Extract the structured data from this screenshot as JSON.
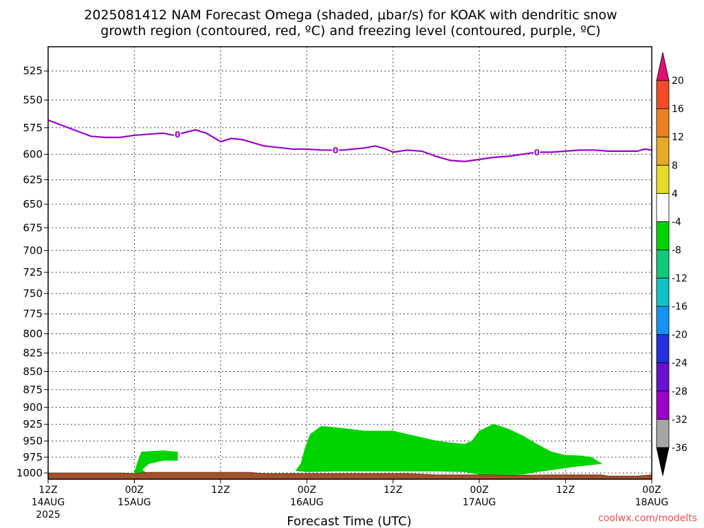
{
  "chart_data": {
    "type": "time-height contour",
    "title_line1": "2025081412 NAM Forecast Omega (shaded, μbar/s) for KOAK with dendritic snow",
    "title_line2": "growth region (contoured, red, ºC) and freezing level (contoured, purple, ºC)",
    "xlabel": "Forecast Time (UTC)",
    "credit": "coolwx.com/modelts",
    "y_axis": {
      "scale": "log-pressure",
      "reversed": true,
      "ylim": [
        1010,
        505
      ],
      "ticks": [
        525,
        550,
        575,
        600,
        625,
        650,
        675,
        700,
        725,
        750,
        775,
        800,
        825,
        850,
        875,
        900,
        925,
        950,
        975,
        1000
      ]
    },
    "x_axis": {
      "xlim": [
        0,
        84
      ],
      "ticks": [
        {
          "h": 0,
          "line1": "12Z",
          "line2": "14AUG",
          "line3": "2025"
        },
        {
          "h": 12,
          "line1": "00Z",
          "line2": "15AUG",
          "line3": ""
        },
        {
          "h": 24,
          "line1": "12Z",
          "line2": "",
          "line3": ""
        },
        {
          "h": 36,
          "line1": "00Z",
          "line2": "16AUG",
          "line3": ""
        },
        {
          "h": 48,
          "line1": "12Z",
          "line2": "",
          "line3": ""
        },
        {
          "h": 60,
          "line1": "00Z",
          "line2": "17AUG",
          "line3": ""
        },
        {
          "h": 72,
          "line1": "12Z",
          "line2": "",
          "line3": ""
        },
        {
          "h": 84,
          "line1": "00Z",
          "line2": "18AUG",
          "line3": ""
        }
      ]
    },
    "grid": true,
    "colorbar": {
      "position": "right",
      "colors": [
        "#000000",
        "#a6a6a6",
        "#9a00c8",
        "#6a10d2",
        "#2230e0",
        "#1493f0",
        "#10c2c8",
        "#12c87a",
        "#00d400",
        "#ffffff",
        "#e6dc28",
        "#e6aa28",
        "#ec8020",
        "#f04a28",
        "#e01070"
      ],
      "labels": [
        "-36",
        "-32",
        "-28",
        "-24",
        "-20",
        "-16",
        "-12",
        "-8",
        "-4",
        "4",
        "8",
        "12",
        "16",
        "20"
      ]
    },
    "freezing_level": {
      "label": "0",
      "label_hours": [
        18,
        40,
        68
      ],
      "color": "#9900cc",
      "points": [
        [
          0,
          568
        ],
        [
          2,
          573
        ],
        [
          4,
          578
        ],
        [
          6,
          583
        ],
        [
          8,
          584
        ],
        [
          10,
          584
        ],
        [
          12,
          582
        ],
        [
          14,
          581
        ],
        [
          16,
          580
        ],
        [
          17.5,
          582
        ],
        [
          20.5,
          577
        ],
        [
          22,
          580
        ],
        [
          24,
          588
        ],
        [
          25.5,
          585
        ],
        [
          27,
          586
        ],
        [
          28,
          588
        ],
        [
          30,
          592
        ],
        [
          34,
          595
        ],
        [
          36,
          595
        ],
        [
          38,
          596
        ],
        [
          41,
          596
        ],
        [
          44,
          594
        ],
        [
          45.5,
          592
        ],
        [
          47,
          595
        ],
        [
          48,
          598
        ],
        [
          50,
          596
        ],
        [
          52,
          597
        ],
        [
          54,
          602
        ],
        [
          56,
          606
        ],
        [
          58,
          607
        ],
        [
          60,
          605
        ],
        [
          62,
          603
        ],
        [
          64,
          602
        ],
        [
          66,
          600
        ],
        [
          68,
          598
        ],
        [
          70,
          598
        ],
        [
          72,
          597
        ],
        [
          74,
          596
        ],
        [
          76,
          596
        ],
        [
          78,
          597
        ],
        [
          80,
          597
        ],
        [
          82,
          597
        ],
        [
          83,
          595
        ],
        [
          84,
          596
        ]
      ]
    },
    "omega_regions": [
      {
        "value_range": [
          -8,
          -4
        ],
        "color": "#00d400",
        "points": [
          [
            12,
            1000
          ],
          [
            12.5,
            982
          ],
          [
            13,
            967
          ],
          [
            16,
            965
          ],
          [
            18,
            967
          ],
          [
            18,
            980
          ],
          [
            16,
            980
          ],
          [
            14,
            985
          ],
          [
            13,
            995
          ],
          [
            14,
            1002
          ]
        ]
      },
      {
        "value_range": [
          -8,
          -4
        ],
        "color": "#00d400",
        "points": [
          [
            34.5,
            996
          ],
          [
            35.2,
            985
          ],
          [
            35.8,
            960
          ],
          [
            36.5,
            940
          ],
          [
            38,
            928
          ],
          [
            40,
            930
          ],
          [
            44,
            935
          ],
          [
            48,
            935
          ],
          [
            50,
            940
          ],
          [
            52,
            945
          ],
          [
            54,
            950
          ],
          [
            56,
            953
          ],
          [
            58,
            955
          ],
          [
            59,
            950
          ],
          [
            60,
            935
          ],
          [
            62,
            925
          ],
          [
            64,
            932
          ],
          [
            66,
            942
          ],
          [
            68,
            955
          ],
          [
            70,
            967
          ],
          [
            72,
            972
          ],
          [
            74,
            973
          ],
          [
            75.5,
            975
          ],
          [
            77,
            985
          ],
          [
            73,
            990
          ],
          [
            70,
            995
          ],
          [
            68,
            998
          ],
          [
            66,
            1002
          ],
          [
            62,
            1005
          ],
          [
            60,
            1002
          ],
          [
            58,
            998
          ],
          [
            54,
            997
          ],
          [
            50,
            997
          ],
          [
            44,
            997
          ],
          [
            40,
            997
          ],
          [
            36,
            998
          ]
        ]
      }
    ],
    "terrain": {
      "color": "#a0522d",
      "points": [
        [
          0,
          1000
        ],
        [
          10,
          1000
        ],
        [
          12,
          1001
        ],
        [
          14,
          999
        ],
        [
          16,
          999
        ],
        [
          20,
          999
        ],
        [
          24,
          999
        ],
        [
          28,
          999
        ],
        [
          30,
          1001
        ],
        [
          40,
          1001
        ],
        [
          50,
          1001
        ],
        [
          52,
          1002
        ],
        [
          54,
          1003
        ],
        [
          62,
          1003
        ],
        [
          64,
          1004
        ],
        [
          70,
          1003
        ],
        [
          77,
          1003
        ],
        [
          78,
          1005
        ],
        [
          82,
          1005
        ],
        [
          84,
          1003
        ]
      ]
    }
  }
}
